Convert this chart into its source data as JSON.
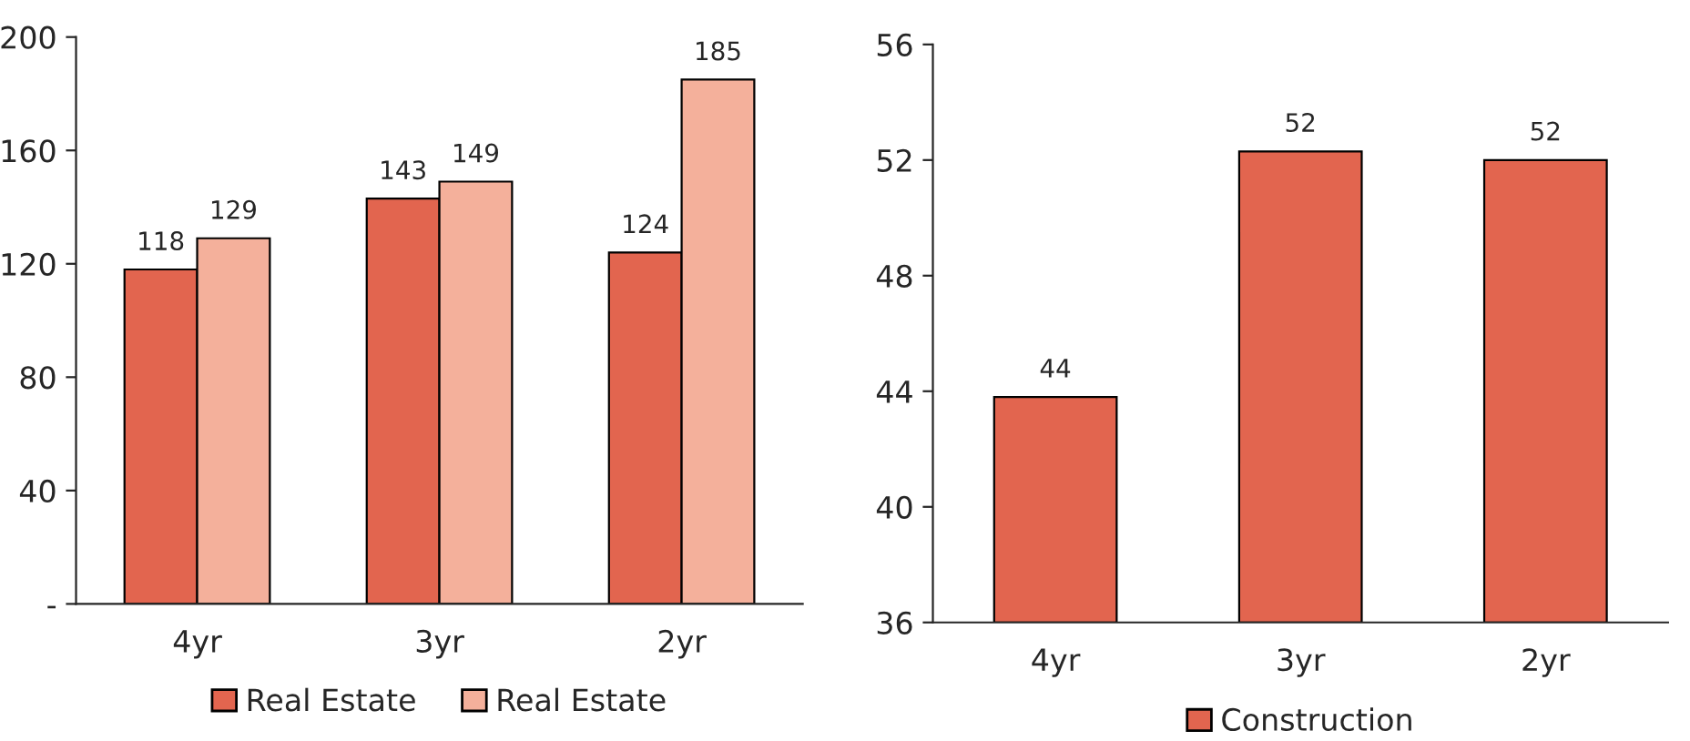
{
  "chart_data": [
    {
      "type": "bar",
      "categories": [
        "4yr",
        "3yr",
        "2yr"
      ],
      "series": [
        {
          "name": "Real Estate",
          "color": "#e2654f",
          "values": [
            118,
            143,
            124
          ]
        },
        {
          "name": "Real Estate",
          "color": "#f4b09b",
          "values": [
            129,
            149,
            185
          ]
        }
      ],
      "ylim": [
        0,
        200
      ],
      "yticks": [
        {
          "value": 0,
          "label": "-"
        },
        40,
        80,
        120,
        160,
        200
      ],
      "data_labels": true,
      "legend": "bottom",
      "grid": false
    },
    {
      "type": "bar",
      "categories": [
        "4yr",
        "3yr",
        "2yr"
      ],
      "series": [
        {
          "name": "Construction",
          "color": "#e2654f",
          "values": [
            43.8,
            52.3,
            52.0
          ],
          "value_labels": [
            "44",
            "52",
            "52"
          ]
        }
      ],
      "ylim": [
        36,
        56
      ],
      "yticks": [
        36,
        40,
        44,
        48,
        52,
        56
      ],
      "legend": "bottom",
      "grid": false
    }
  ]
}
